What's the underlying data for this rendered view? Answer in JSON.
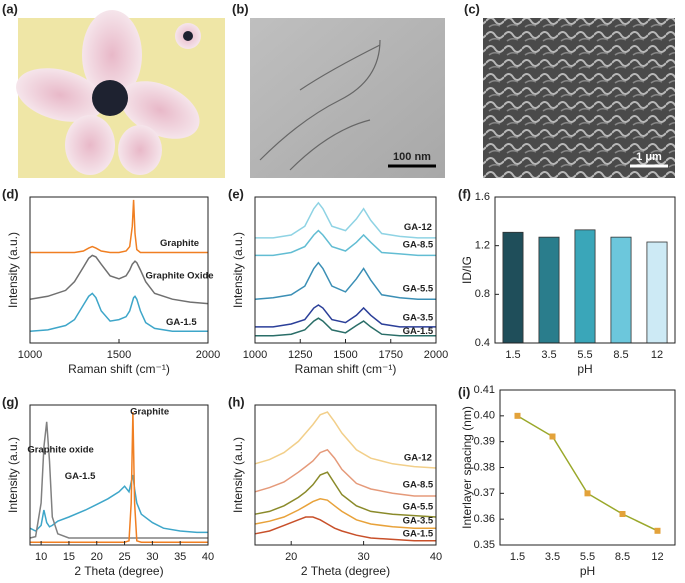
{
  "images": [
    {
      "label": "(a)"
    },
    {
      "label": "(b)",
      "scale_bar": "100 nm"
    },
    {
      "label": "(c)",
      "scale_bar": "1 μm"
    }
  ],
  "chart_data": [
    {
      "type": "line",
      "panel_label": "(d)",
      "xlabel": "Raman shift (cm⁻¹)",
      "ylabel": "Intensity (a.u.)",
      "xlim": [
        1000,
        2000
      ],
      "xticks": [
        1000,
        1500,
        2000
      ],
      "ylim": [
        0,
        1
      ],
      "x": [
        1000,
        1100,
        1200,
        1250,
        1300,
        1330,
        1350,
        1370,
        1400,
        1450,
        1500,
        1540,
        1560,
        1575,
        1582,
        1590,
        1600,
        1620,
        1650,
        1700,
        1800,
        1900,
        2000
      ],
      "series": [
        {
          "name": "Graphite",
          "color": "#f07f22",
          "values": [
            0.62,
            0.62,
            0.62,
            0.62,
            0.63,
            0.65,
            0.66,
            0.65,
            0.63,
            0.62,
            0.62,
            0.63,
            0.66,
            0.8,
            0.98,
            0.75,
            0.64,
            0.62,
            0.62,
            0.62,
            0.62,
            0.62,
            0.62
          ]
        },
        {
          "name": "Graphite Oxide",
          "color": "#707070",
          "values": [
            0.3,
            0.32,
            0.36,
            0.42,
            0.52,
            0.58,
            0.6,
            0.59,
            0.54,
            0.46,
            0.44,
            0.46,
            0.5,
            0.54,
            0.55,
            0.56,
            0.55,
            0.5,
            0.42,
            0.34,
            0.3,
            0.28,
            0.27
          ]
        },
        {
          "name": "GA-1.5",
          "color": "#3ea6c9",
          "values": [
            0.08,
            0.09,
            0.12,
            0.16,
            0.26,
            0.32,
            0.34,
            0.31,
            0.22,
            0.15,
            0.16,
            0.18,
            0.22,
            0.28,
            0.31,
            0.32,
            0.3,
            0.22,
            0.14,
            0.1,
            0.08,
            0.08,
            0.08
          ]
        }
      ]
    },
    {
      "type": "line",
      "panel_label": "(e)",
      "xlabel": "Raman shift (cm⁻¹)",
      "ylabel": "Intensity (a.u.)",
      "xlim": [
        1000,
        2000
      ],
      "xticks": [
        1000,
        1250,
        1500,
        1750,
        2000
      ],
      "ylim": [
        0,
        1
      ],
      "x": [
        1000,
        1100,
        1200,
        1275,
        1325,
        1350,
        1375,
        1425,
        1500,
        1560,
        1600,
        1640,
        1700,
        1800,
        1900,
        2000
      ],
      "series": [
        {
          "name": "GA-12",
          "color": "#8fd3e4",
          "values": [
            0.72,
            0.72,
            0.74,
            0.8,
            0.92,
            0.96,
            0.92,
            0.8,
            0.77,
            0.85,
            0.92,
            0.84,
            0.75,
            0.73,
            0.72,
            0.72
          ]
        },
        {
          "name": "GA-8.5",
          "color": "#62bdd3",
          "values": [
            0.6,
            0.6,
            0.62,
            0.66,
            0.74,
            0.77,
            0.74,
            0.66,
            0.63,
            0.69,
            0.74,
            0.69,
            0.62,
            0.61,
            0.6,
            0.6
          ]
        },
        {
          "name": "GA-5.5",
          "color": "#3b8fb5",
          "values": [
            0.3,
            0.31,
            0.33,
            0.39,
            0.51,
            0.55,
            0.51,
            0.39,
            0.35,
            0.44,
            0.51,
            0.43,
            0.33,
            0.31,
            0.3,
            0.3
          ]
        },
        {
          "name": "GA-3.5",
          "color": "#2b3f99",
          "values": [
            0.11,
            0.11,
            0.13,
            0.16,
            0.24,
            0.26,
            0.24,
            0.16,
            0.14,
            0.19,
            0.24,
            0.19,
            0.13,
            0.11,
            0.11,
            0.11
          ]
        },
        {
          "name": "GA-1.5",
          "color": "#2a6e68",
          "values": [
            0.05,
            0.05,
            0.06,
            0.09,
            0.15,
            0.17,
            0.15,
            0.09,
            0.07,
            0.12,
            0.15,
            0.11,
            0.06,
            0.05,
            0.05,
            0.05
          ]
        }
      ]
    },
    {
      "type": "bar",
      "panel_label": "(f)",
      "xlabel": "pH",
      "ylabel": "ID/IG",
      "categories": [
        "1.5",
        "3.5",
        "5.5",
        "8.5",
        "12"
      ],
      "values": [
        1.31,
        1.27,
        1.33,
        1.27,
        1.23
      ],
      "colors": [
        "#1f4e5a",
        "#2a7d8c",
        "#3aa6b9",
        "#6cc7dc",
        "#cdeaf5"
      ],
      "ylim": [
        0.4,
        1.6
      ],
      "yticks": [
        0.4,
        0.8,
        1.2,
        1.6
      ]
    },
    {
      "type": "line",
      "panel_label": "(g)",
      "xlabel": "2 Theta (degree)",
      "ylabel": "Intensity (a.u.)",
      "xlim": [
        8,
        40
      ],
      "xticks": [
        10,
        15,
        20,
        25,
        30,
        35,
        40
      ],
      "ylim": [
        0,
        1
      ],
      "x": [
        8,
        9,
        10,
        10.5,
        11,
        11.5,
        12,
        13,
        15,
        18,
        20,
        22,
        24,
        25,
        25.8,
        26.2,
        26.5,
        26.8,
        27.2,
        28,
        30,
        32,
        35,
        38,
        40
      ],
      "series": [
        {
          "name": "GA-1.5",
          "color": "#3ea6c9",
          "values": [
            0.12,
            0.1,
            0.14,
            0.25,
            0.16,
            0.13,
            0.14,
            0.17,
            0.2,
            0.25,
            0.29,
            0.33,
            0.38,
            0.42,
            0.38,
            0.45,
            0.5,
            0.4,
            0.3,
            0.22,
            0.16,
            0.12,
            0.1,
            0.09,
            0.09
          ]
        },
        {
          "name": "Graphite oxide",
          "color": "#808080",
          "values": [
            0.05,
            0.06,
            0.3,
            0.7,
            0.88,
            0.6,
            0.2,
            0.08,
            0.05,
            0.05,
            0.05,
            0.05,
            0.05,
            0.05,
            0.05,
            0.05,
            0.05,
            0.05,
            0.05,
            0.05,
            0.05,
            0.05,
            0.05,
            0.05,
            0.05
          ]
        },
        {
          "name": "Graphite",
          "color": "#f07f22",
          "values": [
            0.02,
            0.02,
            0.02,
            0.02,
            0.02,
            0.02,
            0.02,
            0.02,
            0.02,
            0.02,
            0.02,
            0.02,
            0.02,
            0.02,
            0.03,
            0.3,
            0.95,
            0.3,
            0.03,
            0.02,
            0.02,
            0.02,
            0.02,
            0.02,
            0.02
          ]
        }
      ]
    },
    {
      "type": "line",
      "panel_label": "(h)",
      "xlabel": "2 Theta (degree)",
      "ylabel": "Intensity (a.u.)",
      "xlim": [
        15,
        40
      ],
      "xticks": [
        20,
        30,
        40
      ],
      "ylim": [
        0,
        1
      ],
      "x": [
        15,
        17,
        19,
        21,
        22,
        23,
        24,
        25,
        26,
        27,
        29,
        31,
        34,
        37,
        40
      ],
      "series": [
        {
          "name": "GA-12",
          "color": "#f2cf8a",
          "values": [
            0.58,
            0.61,
            0.66,
            0.74,
            0.8,
            0.86,
            0.93,
            0.95,
            0.88,
            0.8,
            0.68,
            0.62,
            0.58,
            0.56,
            0.55
          ]
        },
        {
          "name": "GA-8.5",
          "color": "#e59a7a",
          "values": [
            0.38,
            0.41,
            0.45,
            0.52,
            0.56,
            0.6,
            0.66,
            0.68,
            0.62,
            0.54,
            0.44,
            0.4,
            0.37,
            0.35,
            0.35
          ]
        },
        {
          "name": "GA-5.5",
          "color": "#8a8a2a",
          "values": [
            0.22,
            0.24,
            0.28,
            0.34,
            0.38,
            0.43,
            0.5,
            0.52,
            0.44,
            0.36,
            0.28,
            0.24,
            0.22,
            0.21,
            0.2
          ]
        },
        {
          "name": "GA-3.5",
          "color": "#e8a23a",
          "values": [
            0.15,
            0.17,
            0.2,
            0.25,
            0.28,
            0.31,
            0.33,
            0.32,
            0.28,
            0.24,
            0.18,
            0.15,
            0.13,
            0.12,
            0.12
          ]
        },
        {
          "name": "GA-1.5",
          "color": "#c8502a",
          "values": [
            0.08,
            0.1,
            0.14,
            0.18,
            0.2,
            0.2,
            0.18,
            0.15,
            0.12,
            0.1,
            0.07,
            0.05,
            0.04,
            0.03,
            0.03
          ]
        }
      ]
    },
    {
      "type": "line",
      "panel_label": "(i)",
      "xlabel": "pH",
      "ylabel": "Interlayer spacing (nm)",
      "categories": [
        "1.5",
        "3.5",
        "5.5",
        "8.5",
        "12"
      ],
      "values": [
        0.4,
        0.392,
        0.37,
        0.362,
        0.3555
      ],
      "color": "#9aa82a",
      "marker_color": "#e3a23a",
      "ylim": [
        0.35,
        0.41
      ],
      "yticks": [
        0.35,
        0.36,
        0.37,
        0.38,
        0.39,
        {
          "value": 0.4,
          "label": "0.40"
        },
        0.41
      ]
    }
  ]
}
